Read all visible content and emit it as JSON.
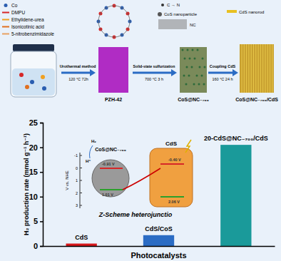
{
  "chart_data": {
    "type": "bar",
    "y_label": "H₂ production rate (mmol g⁻¹ h⁻¹)",
    "x_label": "Photocatalysts",
    "categories": [
      "CdS",
      "CdS/CoS",
      "20-CdS@NC₋₇₀₀/CdS"
    ],
    "values": [
      0.5,
      2.2,
      20.5
    ],
    "colors": [
      "#d7191c",
      "#2b6cc4",
      "#1a9a9a"
    ],
    "ylim": [
      0,
      25
    ],
    "yticks": [
      0,
      5,
      10,
      15,
      20,
      25
    ]
  },
  "diagram": {
    "legend_left": [
      "Co",
      "DMPU",
      "Ethylidene-urea",
      "Isonicotinic acid",
      "5-nitrobenzimidazole"
    ],
    "legend_right": [
      "C → N",
      "CoS nanoparticle",
      "NC",
      "CdS nanorod"
    ],
    "steps": [
      {
        "label": "Urothermal method",
        "condition": "120 °C 72h"
      },
      {
        "label": "Solid-state sulfurization",
        "condition": "700 °C 3 h"
      },
      {
        "label": "Coupling CdS",
        "condition": "160 °C 24 h"
      }
    ],
    "products": [
      "PZH-42",
      "CoS@NC₋₇₀₀",
      "CoS@NC₋₇₀₀/CdS"
    ],
    "inset": {
      "title": "Z-Scheme heterojunctio",
      "axis_label": "V vs. NHE",
      "axis_ticks": [
        "-1",
        "0",
        "1",
        "2",
        "3"
      ],
      "left": "CoS@NC₋₇₀₀",
      "right": "CdS",
      "potentials": [
        "-0.91 V",
        "1.01 V",
        "-0.40 V",
        "2.06 V"
      ],
      "species": [
        "H⁺",
        "H₂"
      ]
    }
  }
}
